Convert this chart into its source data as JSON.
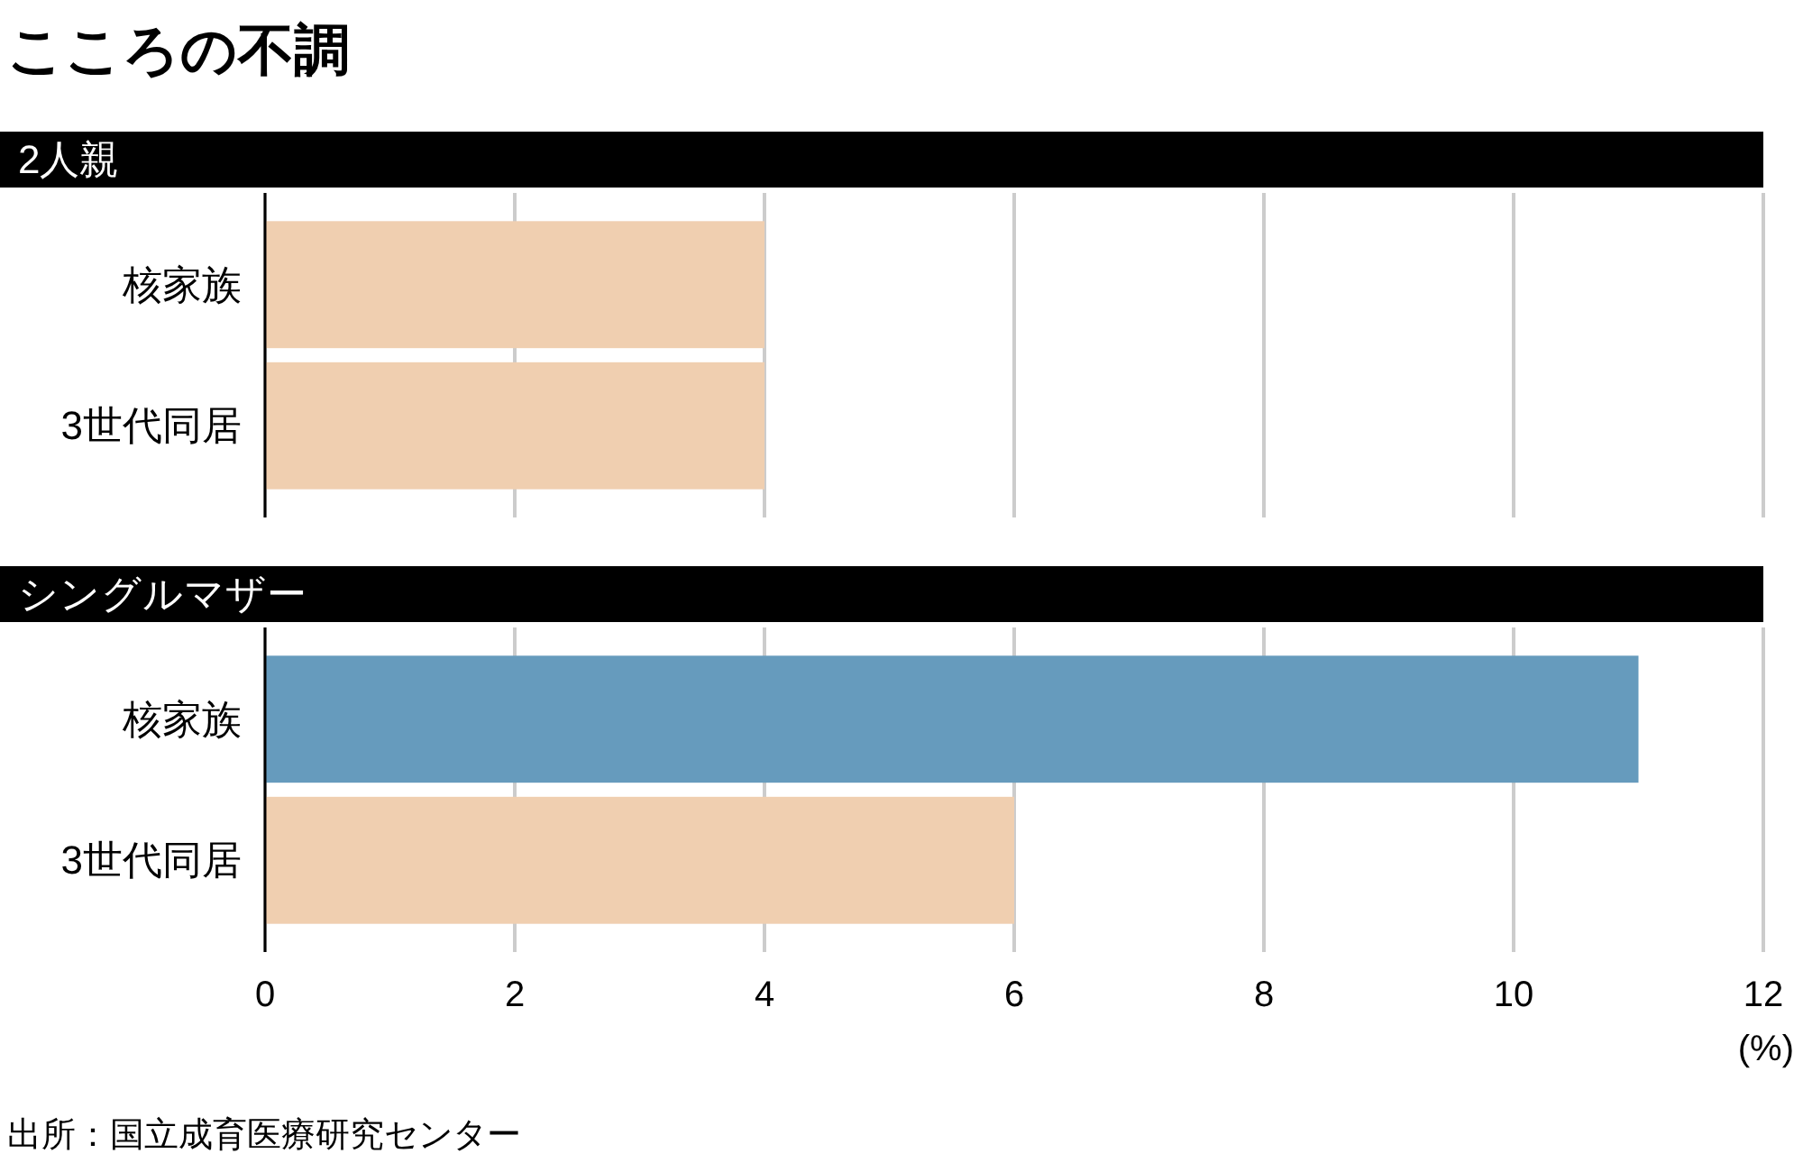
{
  "chart_data": [
    {
      "type": "bar",
      "orientation": "horizontal",
      "title": "こころの不調",
      "subtitle": "2人親",
      "categories": [
        "核家族",
        "3世代同居"
      ],
      "values": [
        4,
        4
      ],
      "colors": [
        "#f0cfb0",
        "#f0cfb0"
      ],
      "xlim": [
        0,
        12
      ],
      "xticks": [
        0,
        2,
        4,
        6,
        8,
        10,
        12
      ],
      "grid": "x",
      "tick_labels": "y"
    },
    {
      "type": "bar",
      "orientation": "horizontal",
      "subtitle": "シングルマザー",
      "categories": [
        "核家族",
        "3世代同居"
      ],
      "values": [
        11,
        6
      ],
      "colors": [
        "#669bbd",
        "#f0cfb0"
      ],
      "xlim": [
        0,
        12
      ],
      "xticks": [
        0,
        2,
        4,
        6,
        8,
        10,
        12
      ],
      "grid": "x",
      "xlabel": "(%)",
      "annotations": [
        "出所：国立成育医療研究センター"
      ]
    }
  ]
}
